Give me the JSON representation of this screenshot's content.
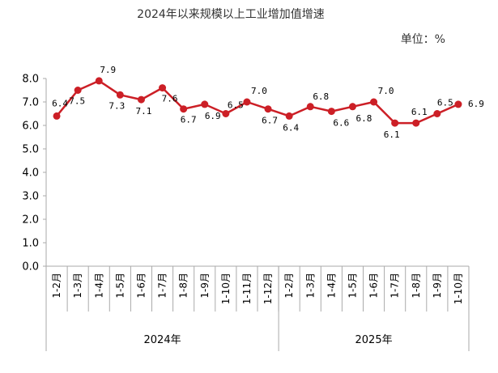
{
  "chart_data": {
    "type": "line",
    "title": "2024年以来规模以上工业增加值增速",
    "unit_label": "单位：%",
    "ylim": [
      0,
      8
    ],
    "yticks": [
      "0.0",
      "1.0",
      "2.0",
      "3.0",
      "4.0",
      "5.0",
      "6.0",
      "7.0",
      "8.0"
    ],
    "grid": false,
    "line_color": "#cc1f26",
    "marker_color": "#cc1f26",
    "categories": [
      "1-2月",
      "1-3月",
      "1-4月",
      "1-5月",
      "1-6月",
      "1-7月",
      "1-8月",
      "1-9月",
      "1-10月",
      "1-11月",
      "1-12月",
      "1-2月",
      "1-3月",
      "1-4月",
      "1-5月",
      "1-6月",
      "1-7月",
      "1-8月",
      "1-9月",
      "1-10月"
    ],
    "values": [
      6.4,
      7.5,
      7.9,
      7.3,
      7.1,
      7.6,
      6.7,
      6.9,
      6.5,
      7.0,
      6.7,
      6.4,
      6.8,
      6.6,
      6.8,
      7.0,
      6.1,
      6.1,
      6.5,
      6.9
    ],
    "data_labels": [
      "6.4",
      "7.5",
      "7.9",
      "7.3",
      "7.1",
      "7.6",
      "6.7",
      "6.9",
      "6.5",
      "7.0",
      "6.7",
      "6.4",
      "6.8",
      "6.6",
      "6.8",
      "7.0",
      "6.1",
      "6.1",
      "6.5",
      "6.9"
    ],
    "groups": [
      {
        "label": "2024年",
        "count": 11
      },
      {
        "label": "2025年",
        "count": 9
      }
    ]
  }
}
